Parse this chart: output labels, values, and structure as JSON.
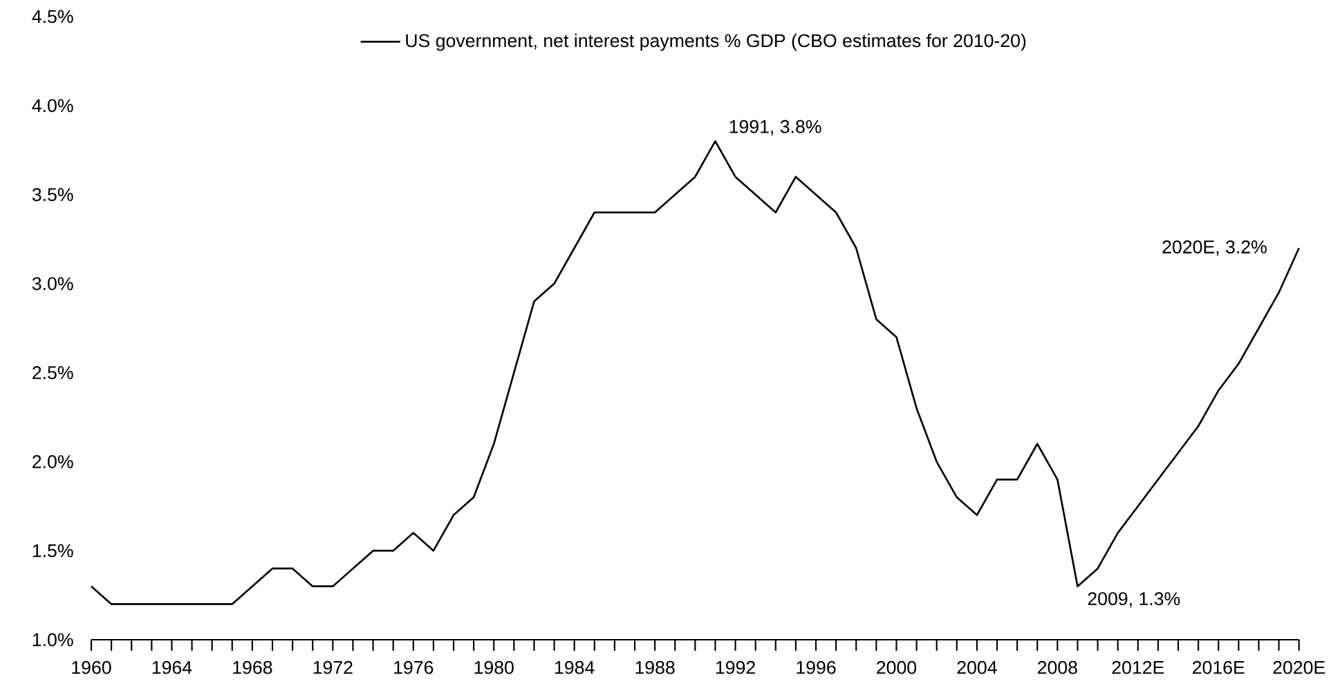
{
  "chart_data": {
    "type": "line",
    "x": [
      1960,
      1961,
      1962,
      1963,
      1964,
      1965,
      1966,
      1967,
      1968,
      1969,
      1970,
      1971,
      1972,
      1973,
      1974,
      1975,
      1976,
      1977,
      1978,
      1979,
      1980,
      1981,
      1982,
      1983,
      1984,
      1985,
      1986,
      1987,
      1988,
      1989,
      1990,
      1991,
      1992,
      1993,
      1994,
      1995,
      1996,
      1997,
      1998,
      1999,
      2000,
      2001,
      2002,
      2003,
      2004,
      2005,
      2006,
      2007,
      2008,
      2009,
      2010,
      2011,
      2012,
      2013,
      2014,
      2015,
      2016,
      2017,
      2018,
      2019,
      2020
    ],
    "series": [
      {
        "name": "US government, net interest payments % GDP (CBO estimates for 2010-20)",
        "color": "#000000",
        "values": [
          1.3,
          1.2,
          1.2,
          1.2,
          1.2,
          1.2,
          1.2,
          1.2,
          1.3,
          1.4,
          1.4,
          1.3,
          1.3,
          1.4,
          1.5,
          1.5,
          1.6,
          1.5,
          1.7,
          1.8,
          2.1,
          2.5,
          2.9,
          3.0,
          3.2,
          3.4,
          3.4,
          3.4,
          3.4,
          3.5,
          3.6,
          3.8,
          3.6,
          3.5,
          3.4,
          3.6,
          3.5,
          3.4,
          3.2,
          2.8,
          2.7,
          2.3,
          2.0,
          1.8,
          1.7,
          1.9,
          1.9,
          2.1,
          1.9,
          1.3,
          1.4,
          1.6,
          1.75,
          1.9,
          2.05,
          2.2,
          2.4,
          2.55,
          2.75,
          2.95,
          3.2
        ]
      }
    ],
    "xlim": [
      1960,
      2020
    ],
    "xticks": [
      1960,
      {
        "value": 1961,
        "label": null
      },
      {
        "value": 1962,
        "label": null
      },
      {
        "value": 1963,
        "label": null
      },
      1964,
      {
        "value": 1965,
        "label": null
      },
      {
        "value": 1966,
        "label": null
      },
      {
        "value": 1967,
        "label": null
      },
      1968,
      {
        "value": 1969,
        "label": null
      },
      {
        "value": 1970,
        "label": null
      },
      {
        "value": 1971,
        "label": null
      },
      1972,
      {
        "value": 1973,
        "label": null
      },
      {
        "value": 1974,
        "label": null
      },
      {
        "value": 1975,
        "label": null
      },
      1976,
      {
        "value": 1977,
        "label": null
      },
      {
        "value": 1978,
        "label": null
      },
      {
        "value": 1979,
        "label": null
      },
      1980,
      {
        "value": 1981,
        "label": null
      },
      {
        "value": 1982,
        "label": null
      },
      {
        "value": 1983,
        "label": null
      },
      1984,
      {
        "value": 1985,
        "label": null
      },
      {
        "value": 1986,
        "label": null
      },
      {
        "value": 1987,
        "label": null
      },
      1988,
      {
        "value": 1989,
        "label": null
      },
      {
        "value": 1990,
        "label": null
      },
      {
        "value": 1991,
        "label": null
      },
      1992,
      {
        "value": 1993,
        "label": null
      },
      {
        "value": 1994,
        "label": null
      },
      {
        "value": 1995,
        "label": null
      },
      1996,
      {
        "value": 1997,
        "label": null
      },
      {
        "value": 1998,
        "label": null
      },
      {
        "value": 1999,
        "label": null
      },
      2000,
      {
        "value": 2001,
        "label": null
      },
      {
        "value": 2002,
        "label": null
      },
      {
        "value": 2003,
        "label": null
      },
      2004,
      {
        "value": 2005,
        "label": null
      },
      {
        "value": 2006,
        "label": null
      },
      {
        "value": 2007,
        "label": null
      },
      2008,
      {
        "value": 2009,
        "label": null
      },
      {
        "value": 2010,
        "label": null
      },
      {
        "value": 2011,
        "label": null
      },
      {
        "value": 2012,
        "label": "2012E"
      },
      {
        "value": 2013,
        "label": null
      },
      {
        "value": 2014,
        "label": null
      },
      {
        "value": 2015,
        "label": null
      },
      {
        "value": 2016,
        "label": "2016E"
      },
      {
        "value": 2017,
        "label": null
      },
      {
        "value": 2018,
        "label": null
      },
      {
        "value": 2019,
        "label": null
      },
      {
        "value": 2020,
        "label": "2020E"
      }
    ],
    "ylim": [
      1.0,
      4.5
    ],
    "yticks": [
      {
        "value": 1.0,
        "label": "1.0%"
      },
      {
        "value": 1.5,
        "label": "1.5%"
      },
      {
        "value": 2.0,
        "label": "2.0%"
      },
      {
        "value": 2.5,
        "label": "2.5%"
      },
      {
        "value": 3.0,
        "label": "3.0%"
      },
      {
        "value": 3.5,
        "label": "3.5%"
      },
      {
        "value": 4.0,
        "label": "4.0%"
      },
      {
        "value": 4.5,
        "label": "4.5%"
      }
    ],
    "legend": "top",
    "annotations": [
      {
        "text": "1991, 3.8%",
        "x": 1991,
        "y": 3.8
      },
      {
        "text": "2009, 1.3%",
        "x": 2009,
        "y": 1.3
      },
      {
        "text": "2020E, 3.2%",
        "x": 2020,
        "y": 3.2
      }
    ]
  }
}
